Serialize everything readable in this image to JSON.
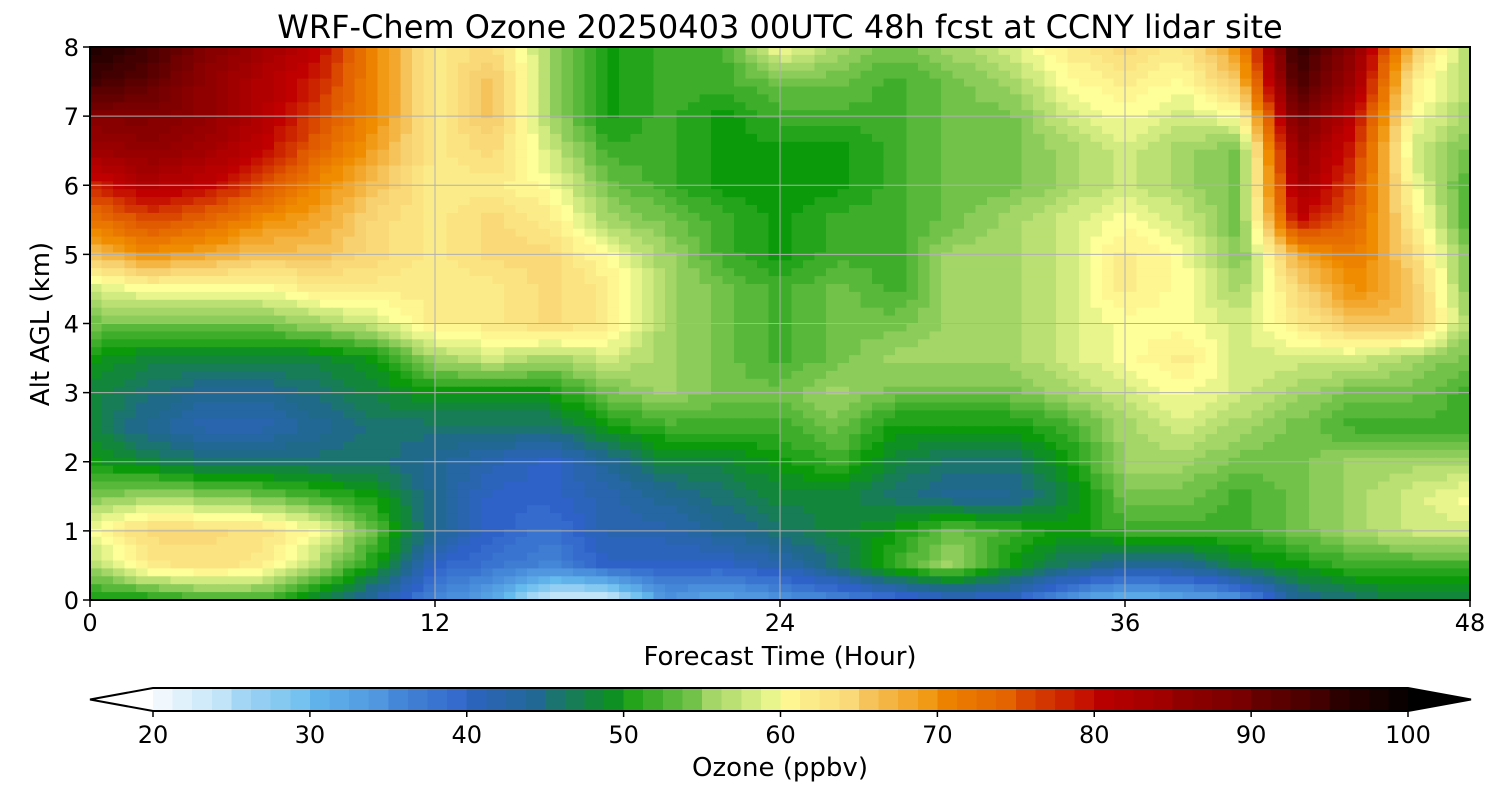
{
  "chart_data": {
    "type": "heatmap",
    "title": "WRF-Chem Ozone  20250403 00UTC 48h fcst at CCNY lidar site",
    "xlabel": "Forecast Time (Hour)",
    "ylabel": "Alt AGL (km)",
    "xlim": [
      0,
      48
    ],
    "ylim": [
      0,
      8
    ],
    "xticks": [
      0,
      12,
      24,
      36,
      48
    ],
    "yticks": [
      0,
      1,
      2,
      3,
      4,
      5,
      6,
      7,
      8
    ],
    "grid": true,
    "colorbar": {
      "label": "Ozone  (ppbv)",
      "min": 20,
      "max": 100,
      "ticks": [
        20,
        30,
        40,
        50,
        60,
        70,
        80,
        90,
        100
      ],
      "extend": "both",
      "stops": [
        {
          "v": 20,
          "c": "#ffffff"
        },
        {
          "v": 30,
          "c": "#66bbee"
        },
        {
          "v": 40,
          "c": "#2e62c8"
        },
        {
          "v": 45,
          "c": "#1f6a88"
        },
        {
          "v": 50,
          "c": "#0a9a0a"
        },
        {
          "v": 55,
          "c": "#8ccc5a"
        },
        {
          "v": 60,
          "c": "#ffff99"
        },
        {
          "v": 65,
          "c": "#f7d070"
        },
        {
          "v": 70,
          "c": "#f08c00"
        },
        {
          "v": 75,
          "c": "#e05a00"
        },
        {
          "v": 80,
          "c": "#c00000"
        },
        {
          "v": 90,
          "c": "#700000"
        },
        {
          "v": 100,
          "c": "#000000"
        }
      ]
    },
    "times": [
      0,
      2,
      4,
      6,
      8,
      10,
      12,
      14,
      16,
      18,
      20,
      22,
      24,
      26,
      28,
      30,
      32,
      34,
      36,
      38,
      40,
      42,
      44,
      46,
      48
    ],
    "altitudes": [
      0,
      0.5,
      1,
      1.5,
      2,
      2.5,
      3,
      3.5,
      4,
      4.5,
      5,
      5.5,
      6,
      6.5,
      7,
      7.5,
      8
    ],
    "ozone": [
      [
        50,
        50,
        52,
        52,
        48,
        42,
        36,
        32,
        22,
        22,
        34,
        32,
        34,
        36,
        38,
        40,
        40,
        34,
        30,
        32,
        34,
        44,
        46,
        48,
        48
      ],
      [
        56,
        62,
        63,
        62,
        56,
        50,
        40,
        38,
        36,
        40,
        40,
        40,
        42,
        46,
        52,
        56,
        50,
        46,
        44,
        44,
        48,
        50,
        52,
        52,
        52
      ],
      [
        60,
        64,
        64,
        63,
        60,
        53,
        44,
        40,
        38,
        42,
        42,
        44,
        46,
        48,
        50,
        54,
        52,
        50,
        52,
        52,
        52,
        54,
        56,
        58,
        58
      ],
      [
        54,
        56,
        55,
        54,
        52,
        50,
        44,
        40,
        40,
        42,
        44,
        46,
        48,
        48,
        46,
        44,
        44,
        48,
        54,
        54,
        52,
        54,
        56,
        58,
        60
      ],
      [
        50,
        48,
        46,
        46,
        46,
        46,
        44,
        42,
        40,
        44,
        48,
        48,
        50,
        52,
        48,
        46,
        46,
        50,
        56,
        56,
        54,
        54,
        56,
        56,
        56
      ],
      [
        48,
        44,
        42,
        42,
        44,
        46,
        46,
        46,
        46,
        50,
        52,
        52,
        52,
        54,
        50,
        50,
        50,
        52,
        56,
        58,
        56,
        54,
        52,
        52,
        52
      ],
      [
        48,
        46,
        44,
        44,
        46,
        48,
        50,
        50,
        50,
        54,
        56,
        54,
        54,
        56,
        54,
        54,
        54,
        56,
        58,
        60,
        58,
        56,
        54,
        54,
        52
      ],
      [
        50,
        48,
        48,
        48,
        48,
        50,
        56,
        58,
        56,
        58,
        56,
        54,
        52,
        54,
        56,
        56,
        56,
        58,
        60,
        62,
        58,
        58,
        58,
        56,
        54
      ],
      [
        54,
        54,
        54,
        54,
        56,
        58,
        62,
        62,
        64,
        62,
        56,
        54,
        52,
        54,
        54,
        56,
        56,
        58,
        60,
        60,
        58,
        62,
        66,
        66,
        56
      ],
      [
        58,
        60,
        60,
        60,
        62,
        62,
        62,
        62,
        64,
        62,
        56,
        54,
        52,
        54,
        52,
        56,
        56,
        58,
        62,
        60,
        56,
        64,
        70,
        66,
        54
      ],
      [
        66,
        70,
        68,
        66,
        66,
        64,
        62,
        64,
        64,
        60,
        56,
        52,
        50,
        52,
        52,
        56,
        56,
        58,
        62,
        60,
        54,
        68,
        72,
        64,
        54
      ],
      [
        72,
        76,
        74,
        70,
        68,
        64,
        62,
        64,
        62,
        56,
        54,
        52,
        50,
        52,
        52,
        54,
        56,
        58,
        60,
        58,
        54,
        80,
        74,
        62,
        52
      ],
      [
        78,
        82,
        80,
        76,
        70,
        66,
        62,
        62,
        60,
        54,
        52,
        50,
        50,
        50,
        52,
        54,
        54,
        56,
        58,
        56,
        54,
        84,
        76,
        60,
        52
      ],
      [
        84,
        86,
        84,
        80,
        74,
        68,
        62,
        64,
        58,
        52,
        52,
        50,
        50,
        50,
        52,
        54,
        54,
        56,
        58,
        56,
        54,
        86,
        78,
        58,
        54
      ],
      [
        88,
        88,
        86,
        82,
        76,
        70,
        62,
        66,
        56,
        50,
        52,
        50,
        52,
        52,
        52,
        54,
        54,
        58,
        60,
        58,
        60,
        90,
        80,
        60,
        56
      ],
      [
        94,
        92,
        86,
        82,
        78,
        70,
        62,
        66,
        56,
        50,
        52,
        52,
        54,
        54,
        52,
        54,
        56,
        60,
        62,
        60,
        66,
        94,
        84,
        62,
        56
      ],
      [
        98,
        94,
        88,
        84,
        80,
        70,
        62,
        64,
        56,
        50,
        52,
        52,
        60,
        56,
        54,
        56,
        58,
        62,
        64,
        62,
        70,
        96,
        86,
        66,
        56
      ]
    ]
  }
}
